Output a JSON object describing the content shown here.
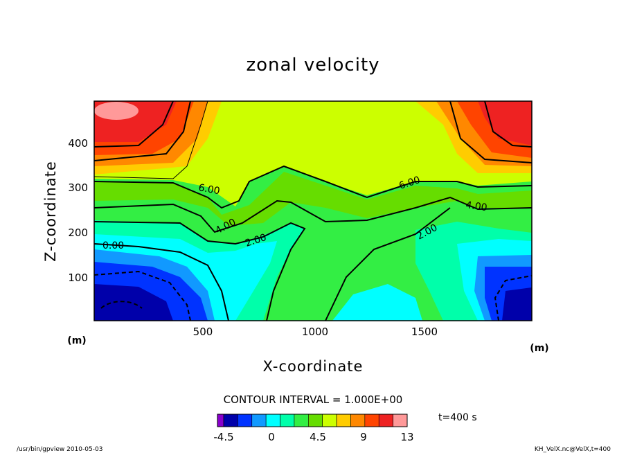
{
  "chart_data": {
    "type": "heatmap",
    "title": "zonal velocity",
    "xlabel": "X-coordinate",
    "ylabel": "Z-coordinate",
    "x_unit": "(m)",
    "y_unit": "(m)",
    "xlim": [
      0,
      1950
    ],
    "ylim": [
      0,
      495
    ],
    "x_ticks": [
      "500",
      "1000",
      "1500"
    ],
    "y_ticks": [
      "100",
      "200",
      "300",
      "400"
    ],
    "contour_interval_text": "CONTOUR INTERVAL = 1.000E+00",
    "contour_labels": [
      "0.00",
      "2.00",
      "4.00",
      "6.00",
      "2.00",
      "4.00",
      "6.00"
    ],
    "colorbar": {
      "tick_labels": [
        "-4.5",
        "0",
        "4.5",
        "9",
        "13"
      ],
      "colors": [
        "#8800cc",
        "#0000aa",
        "#0033ff",
        "#1199ff",
        "#00ffff",
        "#00ffaa",
        "#33ee44",
        "#66dd00",
        "#ccff00",
        "#ffcc00",
        "#ff8800",
        "#ff4400",
        "#ee2222",
        "#ff9999"
      ]
    },
    "time_label": "t=400 s",
    "footer_left": "/usr/bin/gpview  2010-05-03",
    "footer_right": "KH_VelX.nc@VelX,t=400"
  }
}
